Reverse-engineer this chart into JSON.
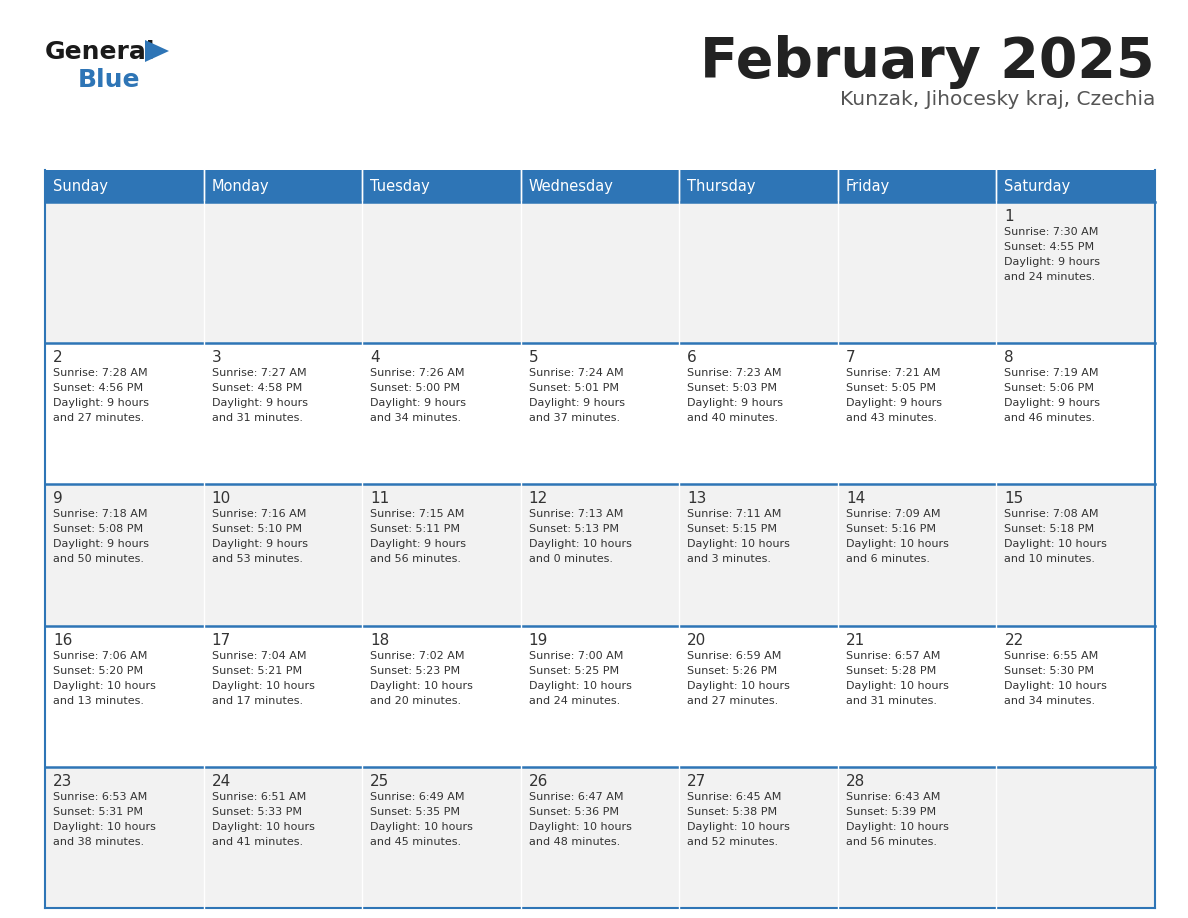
{
  "title": "February 2025",
  "subtitle": "Kunzak, Jihocesky kraj, Czechia",
  "days_of_week": [
    "Sunday",
    "Monday",
    "Tuesday",
    "Wednesday",
    "Thursday",
    "Friday",
    "Saturday"
  ],
  "header_bg": "#2E75B6",
  "header_text": "#FFFFFF",
  "cell_bg_odd": "#F2F2F2",
  "cell_bg_even": "#FFFFFF",
  "cell_text": "#333333",
  "line_color": "#2E75B6",
  "title_color": "#222222",
  "subtitle_color": "#555555",
  "logo_general_color": "#1a1a1a",
  "logo_blue_color": "#2E75B6",
  "calendar_data": [
    [
      null,
      null,
      null,
      null,
      null,
      null,
      {
        "day": "1",
        "sunrise": "7:30 AM",
        "sunset": "4:55 PM",
        "daylight_line1": "Daylight: 9 hours",
        "daylight_line2": "and 24 minutes."
      }
    ],
    [
      {
        "day": "2",
        "sunrise": "7:28 AM",
        "sunset": "4:56 PM",
        "daylight_line1": "Daylight: 9 hours",
        "daylight_line2": "and 27 minutes."
      },
      {
        "day": "3",
        "sunrise": "7:27 AM",
        "sunset": "4:58 PM",
        "daylight_line1": "Daylight: 9 hours",
        "daylight_line2": "and 31 minutes."
      },
      {
        "day": "4",
        "sunrise": "7:26 AM",
        "sunset": "5:00 PM",
        "daylight_line1": "Daylight: 9 hours",
        "daylight_line2": "and 34 minutes."
      },
      {
        "day": "5",
        "sunrise": "7:24 AM",
        "sunset": "5:01 PM",
        "daylight_line1": "Daylight: 9 hours",
        "daylight_line2": "and 37 minutes."
      },
      {
        "day": "6",
        "sunrise": "7:23 AM",
        "sunset": "5:03 PM",
        "daylight_line1": "Daylight: 9 hours",
        "daylight_line2": "and 40 minutes."
      },
      {
        "day": "7",
        "sunrise": "7:21 AM",
        "sunset": "5:05 PM",
        "daylight_line1": "Daylight: 9 hours",
        "daylight_line2": "and 43 minutes."
      },
      {
        "day": "8",
        "sunrise": "7:19 AM",
        "sunset": "5:06 PM",
        "daylight_line1": "Daylight: 9 hours",
        "daylight_line2": "and 46 minutes."
      }
    ],
    [
      {
        "day": "9",
        "sunrise": "7:18 AM",
        "sunset": "5:08 PM",
        "daylight_line1": "Daylight: 9 hours",
        "daylight_line2": "and 50 minutes."
      },
      {
        "day": "10",
        "sunrise": "7:16 AM",
        "sunset": "5:10 PM",
        "daylight_line1": "Daylight: 9 hours",
        "daylight_line2": "and 53 minutes."
      },
      {
        "day": "11",
        "sunrise": "7:15 AM",
        "sunset": "5:11 PM",
        "daylight_line1": "Daylight: 9 hours",
        "daylight_line2": "and 56 minutes."
      },
      {
        "day": "12",
        "sunrise": "7:13 AM",
        "sunset": "5:13 PM",
        "daylight_line1": "Daylight: 10 hours",
        "daylight_line2": "and 0 minutes."
      },
      {
        "day": "13",
        "sunrise": "7:11 AM",
        "sunset": "5:15 PM",
        "daylight_line1": "Daylight: 10 hours",
        "daylight_line2": "and 3 minutes."
      },
      {
        "day": "14",
        "sunrise": "7:09 AM",
        "sunset": "5:16 PM",
        "daylight_line1": "Daylight: 10 hours",
        "daylight_line2": "and 6 minutes."
      },
      {
        "day": "15",
        "sunrise": "7:08 AM",
        "sunset": "5:18 PM",
        "daylight_line1": "Daylight: 10 hours",
        "daylight_line2": "and 10 minutes."
      }
    ],
    [
      {
        "day": "16",
        "sunrise": "7:06 AM",
        "sunset": "5:20 PM",
        "daylight_line1": "Daylight: 10 hours",
        "daylight_line2": "and 13 minutes."
      },
      {
        "day": "17",
        "sunrise": "7:04 AM",
        "sunset": "5:21 PM",
        "daylight_line1": "Daylight: 10 hours",
        "daylight_line2": "and 17 minutes."
      },
      {
        "day": "18",
        "sunrise": "7:02 AM",
        "sunset": "5:23 PM",
        "daylight_line1": "Daylight: 10 hours",
        "daylight_line2": "and 20 minutes."
      },
      {
        "day": "19",
        "sunrise": "7:00 AM",
        "sunset": "5:25 PM",
        "daylight_line1": "Daylight: 10 hours",
        "daylight_line2": "and 24 minutes."
      },
      {
        "day": "20",
        "sunrise": "6:59 AM",
        "sunset": "5:26 PM",
        "daylight_line1": "Daylight: 10 hours",
        "daylight_line2": "and 27 minutes."
      },
      {
        "day": "21",
        "sunrise": "6:57 AM",
        "sunset": "5:28 PM",
        "daylight_line1": "Daylight: 10 hours",
        "daylight_line2": "and 31 minutes."
      },
      {
        "day": "22",
        "sunrise": "6:55 AM",
        "sunset": "5:30 PM",
        "daylight_line1": "Daylight: 10 hours",
        "daylight_line2": "and 34 minutes."
      }
    ],
    [
      {
        "day": "23",
        "sunrise": "6:53 AM",
        "sunset": "5:31 PM",
        "daylight_line1": "Daylight: 10 hours",
        "daylight_line2": "and 38 minutes."
      },
      {
        "day": "24",
        "sunrise": "6:51 AM",
        "sunset": "5:33 PM",
        "daylight_line1": "Daylight: 10 hours",
        "daylight_line2": "and 41 minutes."
      },
      {
        "day": "25",
        "sunrise": "6:49 AM",
        "sunset": "5:35 PM",
        "daylight_line1": "Daylight: 10 hours",
        "daylight_line2": "and 45 minutes."
      },
      {
        "day": "26",
        "sunrise": "6:47 AM",
        "sunset": "5:36 PM",
        "daylight_line1": "Daylight: 10 hours",
        "daylight_line2": "and 48 minutes."
      },
      {
        "day": "27",
        "sunrise": "6:45 AM",
        "sunset": "5:38 PM",
        "daylight_line1": "Daylight: 10 hours",
        "daylight_line2": "and 52 minutes."
      },
      {
        "day": "28",
        "sunrise": "6:43 AM",
        "sunset": "5:39 PM",
        "daylight_line1": "Daylight: 10 hours",
        "daylight_line2": "and 56 minutes."
      },
      null
    ]
  ]
}
